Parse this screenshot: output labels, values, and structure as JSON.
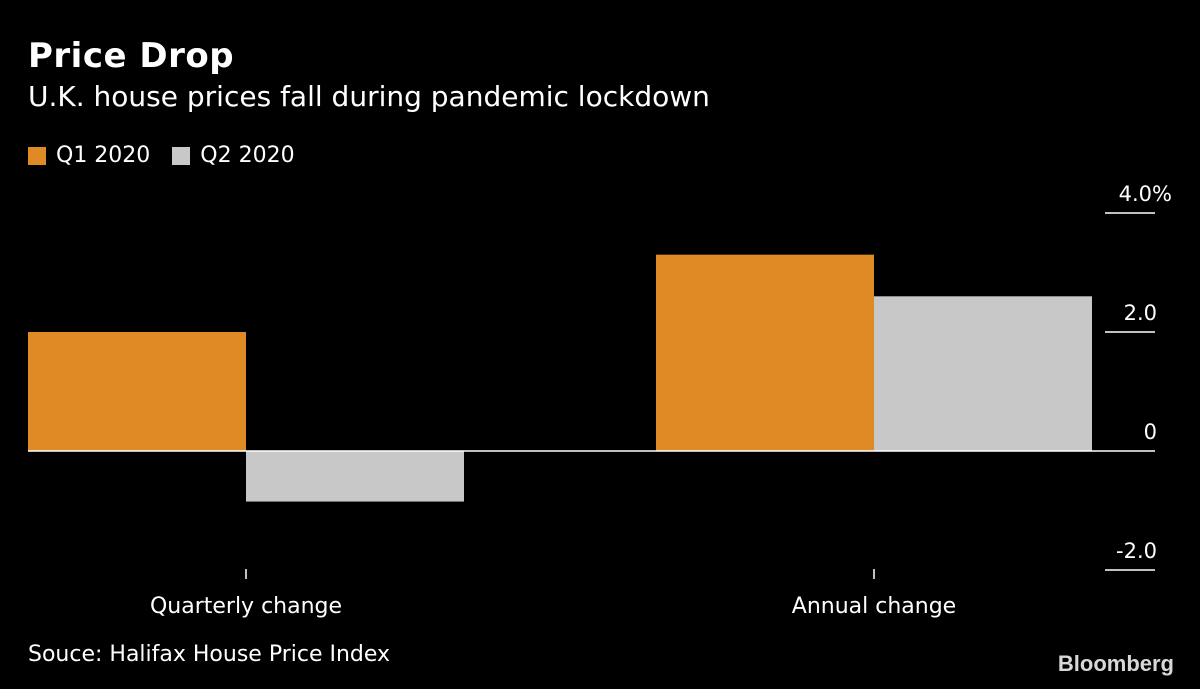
{
  "title": "Price Drop",
  "subtitle": "U.K. house prices fall during pandemic lockdown",
  "source": "Souce: Halifax House Price Index",
  "brand": "Bloomberg",
  "colors": {
    "q1": "#e08a25",
    "q2": "#c8c8c8",
    "background": "#000000",
    "axis": "#ffffff"
  },
  "chart_data": {
    "type": "bar",
    "categories": [
      "Quarterly change",
      "Annual change"
    ],
    "series": [
      {
        "name": "Q1 2020",
        "values": [
          2.0,
          3.3
        ]
      },
      {
        "name": "Q2 2020",
        "values": [
          -0.85,
          2.6
        ]
      }
    ],
    "ylim": [
      -2.0,
      4.0
    ],
    "yticks": [
      -2.0,
      0,
      2.0,
      4.0
    ],
    "ytick_labels": [
      "-2.0",
      "0",
      "2.0",
      "4.0%"
    ],
    "grid": false,
    "legend": "top-left"
  }
}
